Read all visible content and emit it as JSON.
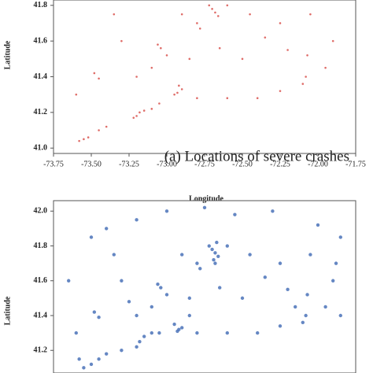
{
  "chart_data": [
    {
      "type": "scatter",
      "color": "#d9534f",
      "xlabel": "Longitude",
      "ylabel": "Latitude",
      "annotation": "(a) Locations of severe crashes",
      "xlim": [
        -73.75,
        -71.75
      ],
      "ylim": [
        40.97,
        41.83
      ],
      "xticks": [
        -73.75,
        {
          "value": -73.5,
          "label": "-73.50"
        },
        -73.25,
        {
          "value": -73,
          "label": "-73.00"
        },
        -72.75,
        {
          "value": -72.5,
          "label": "-72.50"
        },
        -72.25,
        {
          "value": -72,
          "label": "-72.00"
        },
        -71.75
      ],
      "yticks": [
        {
          "value": 41,
          "label": "41.0"
        },
        41.2,
        41.4,
        41.6,
        41.8
      ],
      "x": [
        -73.55,
        -73.52,
        -73.58,
        -73.45,
        -73.4,
        -73.2,
        -73.18,
        -73.22,
        -73.15,
        -73.1,
        -73.05,
        -72.93,
        -72.9,
        -72.95,
        -72.92,
        -72.8,
        -72.6,
        -72.4,
        -72.25,
        -72.1,
        -72.08,
        -72.07,
        -71.95,
        -71.9,
        -72.2,
        -72.35,
        -72.5,
        -72.65,
        -72.68,
        -72.7,
        -72.66,
        -72.72,
        -72.6,
        -72.78,
        -72.8,
        -72.9,
        -73.04,
        -73.06,
        -73.0,
        -73.1,
        -73.2,
        -73.45,
        -73.48,
        -73.6,
        -73.3,
        -73.35,
        -72.45,
        -72.25,
        -72.05,
        -72.85
      ],
      "y": [
        41.05,
        41.06,
        41.04,
        41.1,
        41.12,
        41.18,
        41.2,
        41.17,
        41.21,
        41.22,
        41.25,
        41.31,
        41.33,
        41.3,
        41.35,
        41.28,
        41.28,
        41.28,
        41.32,
        41.36,
        41.4,
        41.52,
        41.45,
        41.6,
        41.55,
        41.62,
        41.5,
        41.56,
        41.76,
        41.78,
        41.74,
        41.8,
        41.8,
        41.67,
        41.7,
        41.75,
        41.56,
        41.58,
        41.52,
        41.45,
        41.4,
        41.39,
        41.42,
        41.3,
        41.6,
        41.75,
        41.75,
        41.7,
        41.75,
        41.5
      ]
    },
    {
      "type": "scatter",
      "color": "#4a72b8",
      "ylabel": "Latitude",
      "xlim": [
        -73.75,
        -71.75
      ],
      "ylim": [
        41.07,
        42.06
      ],
      "yticks": [
        41.2,
        41.4,
        41.6,
        41.8,
        {
          "value": 42,
          "label": "42.0"
        }
      ],
      "x": [
        -73.55,
        -73.5,
        -73.58,
        -73.45,
        -73.4,
        -73.3,
        -73.2,
        -73.18,
        -73.15,
        -73.1,
        -73.05,
        -72.93,
        -72.9,
        -72.95,
        -72.85,
        -72.8,
        -72.6,
        -72.4,
        -72.25,
        -72.1,
        -72.08,
        -72.07,
        -71.95,
        -71.85,
        -71.9,
        -72.2,
        -72.35,
        -72.5,
        -72.65,
        -72.68,
        -72.7,
        -72.66,
        -72.72,
        -72.6,
        -72.78,
        -72.8,
        -72.9,
        -73.04,
        -73.06,
        -73.0,
        -73.1,
        -73.2,
        -73.45,
        -73.48,
        -73.6,
        -73.3,
        -73.35,
        -72.45,
        -72.25,
        -72.05,
        -72.85,
        -73.4,
        -73.2,
        -73.0,
        -72.75,
        -72.55,
        -72.3,
        -72.0,
        -71.85,
        -73.5,
        -72.68,
        -72.69,
        -72.67,
        -72.92,
        -73.65,
        -73.25,
        -72.15,
        -71.88
      ],
      "y": [
        41.1,
        41.12,
        41.15,
        41.15,
        41.18,
        41.2,
        41.22,
        41.25,
        41.28,
        41.3,
        41.3,
        41.31,
        41.33,
        41.35,
        41.4,
        41.3,
        41.3,
        41.3,
        41.34,
        41.36,
        41.4,
        41.52,
        41.45,
        41.4,
        41.6,
        41.55,
        41.62,
        41.5,
        41.56,
        41.76,
        41.78,
        41.74,
        41.8,
        41.8,
        41.67,
        41.7,
        41.75,
        41.56,
        41.58,
        41.52,
        41.45,
        41.4,
        41.39,
        41.42,
        41.3,
        41.6,
        41.75,
        41.75,
        41.7,
        41.75,
        41.5,
        41.9,
        41.95,
        42.0,
        42.02,
        41.98,
        42.0,
        41.92,
        41.85,
        41.85,
        41.7,
        41.72,
        41.82,
        41.32,
        41.6,
        41.48,
        41.45,
        41.7
      ]
    }
  ]
}
